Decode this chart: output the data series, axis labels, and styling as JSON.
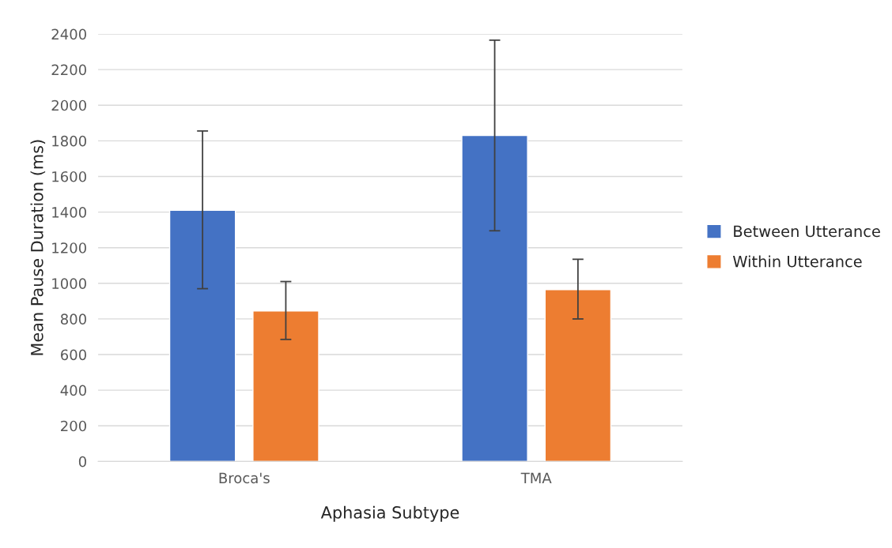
{
  "chart_data": {
    "type": "bar",
    "xlabel": "Aphasia Subtype",
    "ylabel": "Mean Pause Duration (ms)",
    "categories": [
      "Broca's",
      "TMA"
    ],
    "series": [
      {
        "name": "Between Utterance",
        "color": "#4472c4",
        "values": [
          1410,
          1830
        ],
        "errors": [
          [
            970,
            1855
          ],
          [
            1295,
            2365
          ]
        ]
      },
      {
        "name": "Within Utterance",
        "color": "#ed7d31",
        "values": [
          845,
          965
        ],
        "errors": [
          [
            685,
            1010
          ],
          [
            800,
            1135
          ]
        ]
      }
    ],
    "ylim": [
      0,
      2400
    ],
    "yticks": [
      0,
      200,
      400,
      600,
      800,
      1000,
      1200,
      1400,
      1600,
      1800,
      2000,
      2200,
      2400
    ],
    "grid": "y",
    "legend": "right"
  }
}
